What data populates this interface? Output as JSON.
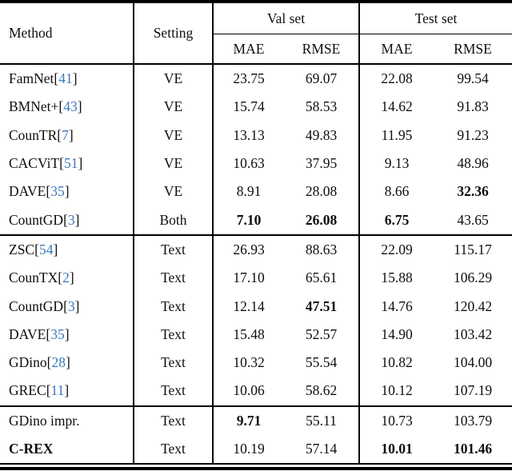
{
  "header": {
    "method": "Method",
    "setting": "Setting",
    "val_set": "Val set",
    "test_set": "Test set",
    "mae": "MAE",
    "rmse": "RMSE"
  },
  "punct": {
    "cite_open": "[",
    "cite_close": "]",
    "space": " "
  },
  "colors": {
    "citation": "#3d79b6",
    "rule": "#000000",
    "text": "#0e0e0e"
  },
  "sections": [
    {
      "rows": [
        {
          "method": "FamNet",
          "cite": "41",
          "method_bold": false,
          "setting": "VE",
          "values": [
            "23.75",
            "69.07",
            "22.08",
            "99.54"
          ],
          "bold": [
            false,
            false,
            false,
            false
          ]
        },
        {
          "method": "BMNet+",
          "cite": "43",
          "method_bold": false,
          "setting": "VE",
          "values": [
            "15.74",
            "58.53",
            "14.62",
            "91.83"
          ],
          "bold": [
            false,
            false,
            false,
            false
          ]
        },
        {
          "method": "CounTR",
          "cite": "7",
          "method_bold": false,
          "setting": "VE",
          "values": [
            "13.13",
            "49.83",
            "11.95",
            "91.23"
          ],
          "bold": [
            false,
            false,
            false,
            false
          ]
        },
        {
          "method": "CACViT",
          "cite": "51",
          "method_bold": false,
          "setting": "VE",
          "values": [
            "10.63",
            "37.95",
            "9.13",
            "48.96"
          ],
          "bold": [
            false,
            false,
            false,
            false
          ]
        },
        {
          "method": "DAVE",
          "cite": "35",
          "method_bold": false,
          "setting": "VE",
          "values": [
            "8.91",
            "28.08",
            "8.66",
            "32.36"
          ],
          "bold": [
            false,
            false,
            false,
            true
          ]
        },
        {
          "method": "CountGD",
          "cite": "3",
          "method_bold": false,
          "setting": "Both",
          "values": [
            "7.10",
            "26.08",
            "6.75",
            "43.65"
          ],
          "bold": [
            true,
            true,
            true,
            false
          ]
        }
      ]
    },
    {
      "rows": [
        {
          "method": "ZSC",
          "cite": "54",
          "method_bold": false,
          "setting": "Text",
          "values": [
            "26.93",
            "88.63",
            "22.09",
            "115.17"
          ],
          "bold": [
            false,
            false,
            false,
            false
          ]
        },
        {
          "method": "CounTX",
          "cite": "2",
          "method_bold": false,
          "setting": "Text",
          "values": [
            "17.10",
            "65.61",
            "15.88",
            "106.29"
          ],
          "bold": [
            false,
            false,
            false,
            false
          ]
        },
        {
          "method": "CountGD",
          "cite": "3",
          "method_bold": false,
          "setting": "Text",
          "values": [
            "12.14",
            "47.51",
            "14.76",
            "120.42"
          ],
          "bold": [
            false,
            true,
            false,
            false
          ]
        },
        {
          "method": "DAVE",
          "cite": "35",
          "method_bold": false,
          "setting": "Text",
          "values": [
            "15.48",
            "52.57",
            "14.90",
            "103.42"
          ],
          "bold": [
            false,
            false,
            false,
            false
          ]
        },
        {
          "method": "GDino",
          "cite": "28",
          "method_bold": false,
          "setting": "Text",
          "values": [
            "10.32",
            "55.54",
            "10.82",
            "104.00"
          ],
          "bold": [
            false,
            false,
            false,
            false
          ]
        },
        {
          "method": "GREC",
          "cite": "11",
          "method_bold": false,
          "setting": "Text",
          "values": [
            "10.06",
            "58.62",
            "10.12",
            "107.19"
          ],
          "bold": [
            false,
            false,
            false,
            false
          ]
        }
      ]
    },
    {
      "rows": [
        {
          "method": "GDino impr.",
          "cite": null,
          "method_bold": false,
          "setting": "Text",
          "values": [
            "9.71",
            "55.11",
            "10.73",
            "103.79"
          ],
          "bold": [
            true,
            false,
            false,
            false
          ]
        },
        {
          "method": "C-REX",
          "cite": null,
          "method_bold": true,
          "setting": "Text",
          "values": [
            "10.19",
            "57.14",
            "10.01",
            "101.46"
          ],
          "bold": [
            false,
            false,
            true,
            true
          ]
        }
      ]
    }
  ]
}
